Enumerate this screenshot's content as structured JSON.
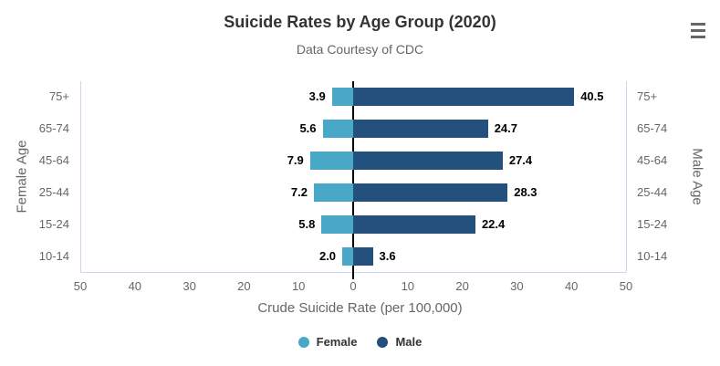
{
  "header": {
    "menu_icon": "hamburger-menu-icon"
  },
  "chart_data": {
    "type": "bar",
    "variant": "diverging-horizontal (population-pyramid style)",
    "title": "Suicide Rates by Age Group (2020)",
    "subtitle": "Data Courtesy of CDC",
    "xlabel": "Crude Suicide Rate (per 100,000)",
    "left_axis_label": "Female Age",
    "right_axis_label": "Male Age",
    "categories": [
      "75+",
      "65-74",
      "45-64",
      "25-44",
      "15-24",
      "10-14"
    ],
    "series": [
      {
        "name": "Female",
        "direction": "left",
        "color": "#49A7C8",
        "values": [
          3.9,
          5.6,
          7.9,
          7.2,
          5.8,
          2.0
        ]
      },
      {
        "name": "Male",
        "direction": "right",
        "color": "#24507E",
        "values": [
          40.5,
          24.7,
          27.4,
          28.3,
          22.4,
          3.6
        ]
      }
    ],
    "x_ticks": [
      50,
      40,
      30,
      20,
      10,
      0,
      10,
      20,
      30,
      40,
      50
    ],
    "xlim": [
      0,
      50
    ],
    "grid": false,
    "zero_line_color": "#000000",
    "axis_line_color": "#ccd6eb",
    "legend_position": "bottom-center",
    "legend": [
      {
        "label": "Female",
        "color": "#49A7C8"
      },
      {
        "label": "Male",
        "color": "#24507E"
      }
    ]
  }
}
